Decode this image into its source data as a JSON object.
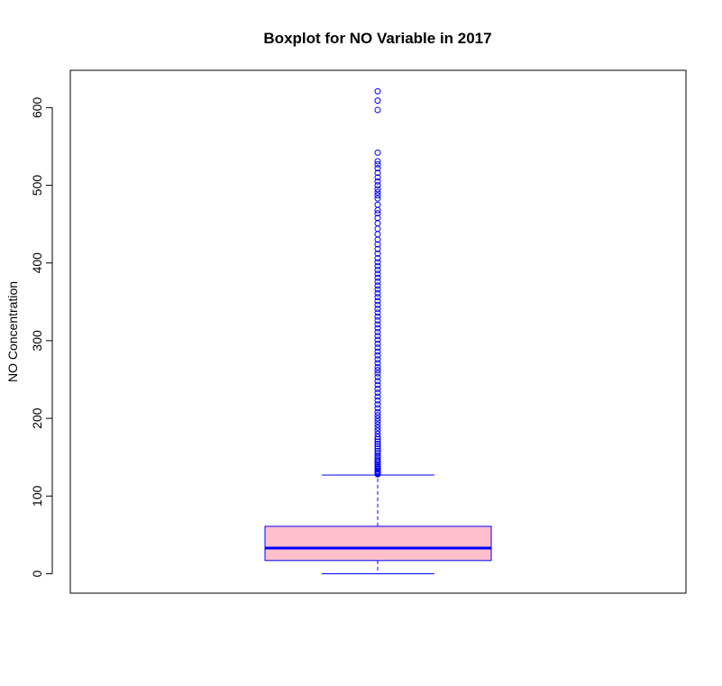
{
  "chart_data": {
    "type": "boxplot",
    "title": "Boxplot for NO Variable in 2017",
    "xlabel": "",
    "ylabel": "NO Concentration",
    "ylim": [
      -25,
      648
    ],
    "yticks": [
      0,
      100,
      200,
      300,
      400,
      500,
      600
    ],
    "grid": false,
    "legend": "none",
    "colors": {
      "box_fill": "#ffc0cb",
      "box_border": "#0000ff",
      "median": "#0000ff",
      "whisker": "#0000ff",
      "outlier": "#0000ff",
      "axis": "#000000"
    },
    "box": {
      "min": 0,
      "q1": 17,
      "median": 33,
      "q3": 61,
      "max": 127
    },
    "outliers": [
      128,
      129,
      130,
      131,
      132,
      134,
      135,
      137,
      139,
      141,
      143,
      145,
      147,
      150,
      152,
      155,
      158,
      161,
      164,
      167,
      170,
      173,
      176,
      180,
      184,
      188,
      192,
      196,
      200,
      204,
      208,
      213,
      218,
      223,
      228,
      233,
      238,
      243,
      248,
      253,
      258,
      262,
      266,
      271,
      276,
      281,
      286,
      291,
      296,
      301,
      306,
      311,
      316,
      321,
      326,
      331,
      336,
      341,
      346,
      351,
      356,
      361,
      366,
      371,
      376,
      381,
      386,
      391,
      396,
      401,
      406,
      412,
      418,
      424,
      430,
      437,
      444,
      451,
      458,
      464,
      468,
      475,
      483,
      487,
      491,
      495,
      500,
      505,
      510,
      516,
      522,
      527,
      531,
      542,
      597,
      609,
      621
    ]
  }
}
